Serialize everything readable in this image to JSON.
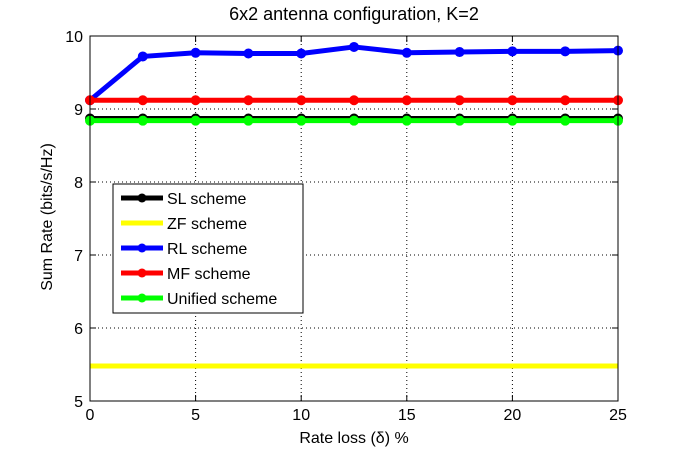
{
  "chart_data": {
    "type": "line",
    "title": "6x2 antenna configuration, K=2",
    "xlabel": "Rate loss (δ) %",
    "ylabel": "Sum Rate (bits/s/Hz)",
    "xlim": [
      0,
      25
    ],
    "ylim": [
      5,
      10
    ],
    "xticks": [
      0,
      5,
      10,
      15,
      20,
      25
    ],
    "yticks": [
      5,
      6,
      7,
      8,
      9,
      10
    ],
    "grid": true,
    "legend_position": "middle-left",
    "x": [
      0,
      2.5,
      5,
      7.5,
      10,
      12.5,
      15,
      17.5,
      20,
      22.5,
      25
    ],
    "series": [
      {
        "name": "SL scheme",
        "color": "#000000",
        "marker": true,
        "values": [
          8.87,
          8.87,
          8.87,
          8.87,
          8.87,
          8.87,
          8.87,
          8.87,
          8.87,
          8.87,
          8.87
        ]
      },
      {
        "name": "ZF scheme",
        "color": "#ffff00",
        "marker": false,
        "values": [
          5.48,
          5.48,
          5.48,
          5.48,
          5.48,
          5.48,
          5.48,
          5.48,
          5.48,
          5.48,
          5.48
        ]
      },
      {
        "name": "RL scheme",
        "color": "#0000ff",
        "marker": true,
        "values": [
          9.12,
          9.72,
          9.77,
          9.76,
          9.76,
          9.85,
          9.77,
          9.78,
          9.79,
          9.79,
          9.8
        ]
      },
      {
        "name": "MF scheme",
        "color": "#ff0000",
        "marker": true,
        "values": [
          9.12,
          9.12,
          9.12,
          9.12,
          9.12,
          9.12,
          9.12,
          9.12,
          9.12,
          9.12,
          9.12
        ]
      },
      {
        "name": "Unified scheme",
        "color": "#00ff00",
        "marker": true,
        "values": [
          8.84,
          8.84,
          8.84,
          8.84,
          8.84,
          8.84,
          8.84,
          8.84,
          8.84,
          8.84,
          8.84
        ]
      }
    ]
  }
}
